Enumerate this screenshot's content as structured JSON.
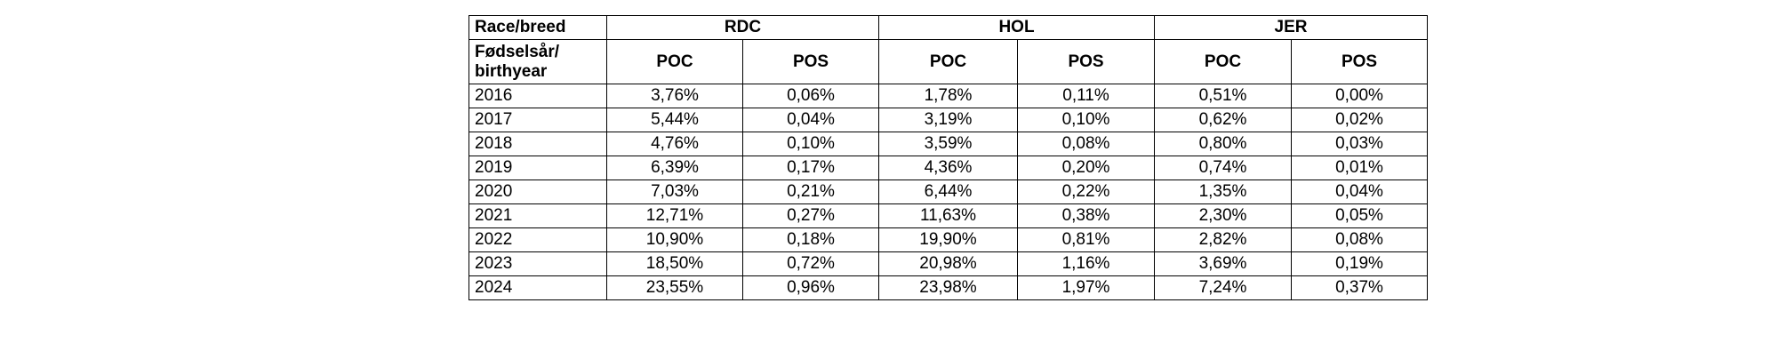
{
  "table": {
    "header": {
      "corner": "Race/breed",
      "groups": [
        "RDC",
        "HOL",
        "JER"
      ],
      "subcorner": "Fødselsår/ birthyear",
      "columns": [
        "POC",
        "POS",
        "POC",
        "POS",
        "POC",
        "POS"
      ]
    },
    "rows": [
      [
        "2016",
        "3,76%",
        "0,06%",
        "1,78%",
        "0,11%",
        "0,51%",
        "0,00%"
      ],
      [
        "2017",
        "5,44%",
        "0,04%",
        "3,19%",
        "0,10%",
        "0,62%",
        "0,02%"
      ],
      [
        "2018",
        "4,76%",
        "0,10%",
        "3,59%",
        "0,08%",
        "0,80%",
        "0,03%"
      ],
      [
        "2019",
        "6,39%",
        "0,17%",
        "4,36%",
        "0,20%",
        "0,74%",
        "0,01%"
      ],
      [
        "2020",
        "7,03%",
        "0,21%",
        "6,44%",
        "0,22%",
        "1,35%",
        "0,04%"
      ],
      [
        "2021",
        "12,71%",
        "0,27%",
        "11,63%",
        "0,38%",
        "2,30%",
        "0,05%"
      ],
      [
        "2022",
        "10,90%",
        "0,18%",
        "19,90%",
        "0,81%",
        "2,82%",
        "0,08%"
      ],
      [
        "2023",
        "18,50%",
        "0,72%",
        "20,98%",
        "1,16%",
        "3,69%",
        "0,19%"
      ],
      [
        "2024",
        "23,55%",
        "0,96%",
        "23,98%",
        "1,97%",
        "7,24%",
        "0,37%"
      ]
    ]
  }
}
